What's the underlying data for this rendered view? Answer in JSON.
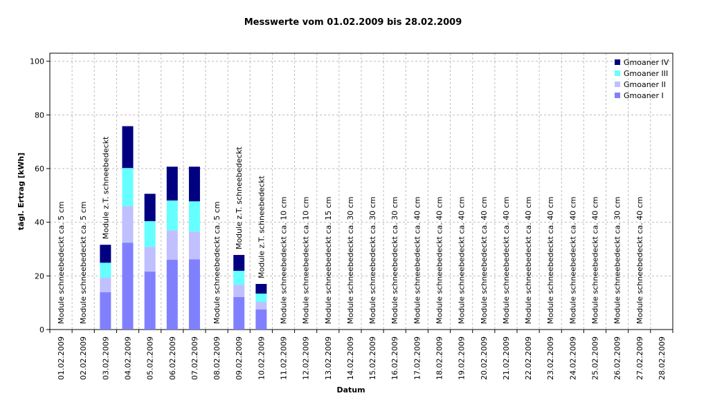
{
  "chart_data": {
    "type": "stacked-bar",
    "title": "Messwerte vom 01.02.2009 bis 28.02.2009",
    "x_label": "Datum",
    "y_label": "tägl. Ertrag [kWh]",
    "categories": [
      "01.02.2009",
      "02.02.2009",
      "03.02.2009",
      "04.02.2009",
      "05.02.2009",
      "06.02.2009",
      "07.02.2009",
      "08.02.2009",
      "09.02.2009",
      "10.02.2009",
      "11.02.2009",
      "12.02.2009",
      "13.02.2009",
      "14.02.2009",
      "15.02.2009",
      "16.02.2009",
      "17.02.2009",
      "18.02.2009",
      "19.02.2009",
      "20.02.2009",
      "21.02.2009",
      "22.02.2009",
      "23.02.2009",
      "24.02.2009",
      "25.02.2009",
      "26.02.2009",
      "27.02.2009",
      "28.02.2009"
    ],
    "annotations": [
      "Module schneebedeckt ca. 5 cm",
      "Module schneebedeckt ca. 5 cm",
      "Module z.T. schneebedeckt",
      null,
      null,
      null,
      null,
      "Module schneebedeckt ca. 5 cm",
      "Module z.T. schneebedeckt",
      "Module z.T. schneebedeckt",
      "Module schneebedeckt ca. 10 cm",
      "Module schneebedeckt ca. 10 cm",
      "Module schneebedeckt ca. 15 cm",
      "Module schneebedeckt ca. 30 cm",
      "Module schneebedeckt ca. 30 cm",
      "Module schneebedeckt ca. 30 cm",
      "Module schneebedeckt ca. 40 cm",
      "Module schneebedeckt ca. 40 cm",
      "Module schneebedeckt ca. 40 cm",
      "Module schneebedeckt ca. 40 cm",
      "Module schneebedeckt ca. 40 cm",
      "Module schneebedeckt ca. 40 cm",
      "Module schneebedeckt ca. 40 cm",
      "Module schneebedeckt ca. 40 cm",
      "Module schneebedeckt ca. 40 cm",
      "Module schneebedeckt ca. 30 cm",
      "Module schneebedeckt ca. 40 cm",
      null
    ],
    "series": [
      {
        "name": "Gmoaner I",
        "color": "#8080ff",
        "values": [
          null,
          null,
          13.9,
          32.4,
          21.6,
          26.0,
          26.2,
          null,
          12.1,
          7.5,
          null,
          null,
          null,
          null,
          null,
          null,
          null,
          null,
          null,
          null,
          null,
          null,
          null,
          null,
          null,
          null,
          null,
          null
        ]
      },
      {
        "name": "Gmoaner II",
        "color": "#c0c0ff",
        "values": [
          null,
          null,
          5.4,
          13.6,
          9.2,
          11.0,
          10.3,
          null,
          4.6,
          2.8,
          null,
          null,
          null,
          null,
          null,
          null,
          null,
          null,
          null,
          null,
          null,
          null,
          null,
          null,
          null,
          null,
          null,
          null
        ]
      },
      {
        "name": "Gmoaner III",
        "color": "#66ffff",
        "values": [
          null,
          null,
          5.6,
          14.2,
          9.6,
          11.1,
          11.3,
          null,
          5.2,
          3.1,
          null,
          null,
          null,
          null,
          null,
          null,
          null,
          null,
          null,
          null,
          null,
          null,
          null,
          null,
          null,
          null,
          null,
          null
        ]
      },
      {
        "name": "Gmoaner IV",
        "color": "#000080",
        "values": [
          null,
          null,
          6.7,
          15.6,
          10.2,
          12.6,
          12.9,
          null,
          5.9,
          3.6,
          null,
          null,
          null,
          null,
          null,
          null,
          null,
          null,
          null,
          null,
          null,
          null,
          null,
          null,
          null,
          null,
          null,
          null
        ]
      }
    ],
    "ylim": [
      0,
      103
    ],
    "yticks": [
      0,
      20,
      40,
      60,
      80,
      100
    ],
    "grid": true,
    "legend": "top-right"
  }
}
